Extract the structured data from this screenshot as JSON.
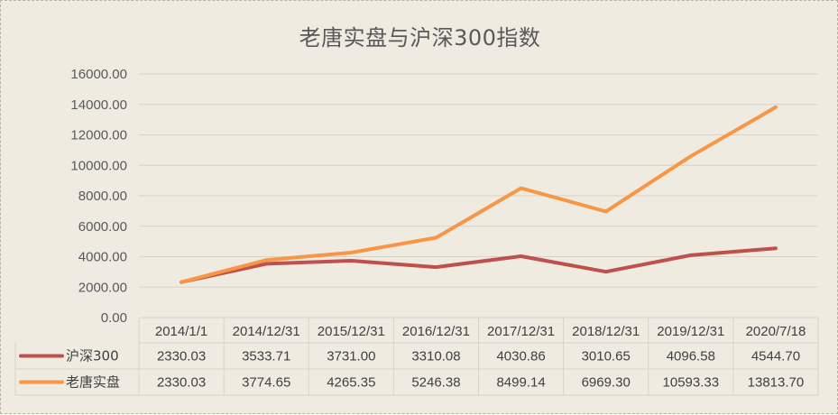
{
  "chart_data": {
    "type": "line",
    "title": "老唐实盘与沪深300指数",
    "categories": [
      "2014/1/1",
      "2014/12/31",
      "2015/12/31",
      "2016/12/31",
      "2017/12/31",
      "2018/12/31",
      "2019/12/31",
      "2020/7/18"
    ],
    "series": [
      {
        "name": "沪深300",
        "color": "#c0504d",
        "values": [
          2330.03,
          3533.71,
          3731.0,
          3310.08,
          4030.86,
          3010.65,
          4096.58,
          4544.7
        ],
        "labels": [
          "2330.03",
          "3533.71",
          "3731.00",
          "3310.08",
          "4030.86",
          "3010.65",
          "4096.58",
          "4544.70"
        ]
      },
      {
        "name": "老唐实盘",
        "color": "#f79646",
        "values": [
          2330.03,
          3774.65,
          4265.35,
          5246.38,
          8499.14,
          6969.3,
          10593.33,
          13813.7
        ],
        "labels": [
          "2330.03",
          "3774.65",
          "4265.35",
          "5246.38",
          "8499.14",
          "6969.30",
          "10593.33",
          "13813.70"
        ]
      }
    ],
    "ylim": [
      0,
      16000
    ],
    "yticks": [
      "0.00",
      "2000.00",
      "4000.00",
      "6000.00",
      "8000.00",
      "10000.00",
      "12000.00",
      "14000.00",
      "16000.00"
    ],
    "grid": true,
    "legend": "data-table",
    "background": "#efebe1"
  }
}
